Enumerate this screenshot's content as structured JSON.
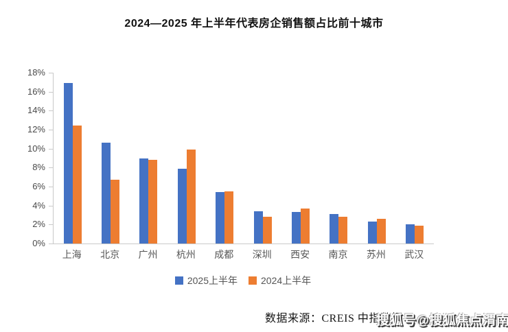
{
  "title": "2024—2025 年上半年代表房企销售额占比前十城市",
  "chart_data": {
    "type": "bar",
    "title": "2024—2025 年上半年代表房企销售额占比前十城市",
    "categories": [
      "上海",
      "北京",
      "广州",
      "杭州",
      "成都",
      "深圳",
      "西安",
      "南京",
      "苏州",
      "武汉"
    ],
    "series": [
      {
        "name": "2025上半年",
        "color": "#4472C4",
        "values": [
          16.9,
          10.6,
          9.0,
          7.9,
          5.4,
          3.4,
          3.3,
          3.1,
          2.3,
          2.0
        ]
      },
      {
        "name": "2024上半年",
        "color": "#ED7D31",
        "values": [
          12.4,
          6.7,
          8.8,
          9.9,
          5.5,
          2.8,
          3.7,
          2.8,
          2.6,
          1.9
        ]
      }
    ],
    "xlabel": "",
    "ylabel": "",
    "ylim": [
      0,
      18
    ],
    "ytick_step": 2,
    "ytick_labels": [
      "0%",
      "2%",
      "4%",
      "6%",
      "8%",
      "10%",
      "12%",
      "14%",
      "16%",
      "18%"
    ],
    "grid": false,
    "legend_position": "bottom"
  },
  "footer": {
    "source": "数据来源：CREIS 中指数据",
    "watermark": "搜狐号@搜狐焦点渭南站"
  }
}
